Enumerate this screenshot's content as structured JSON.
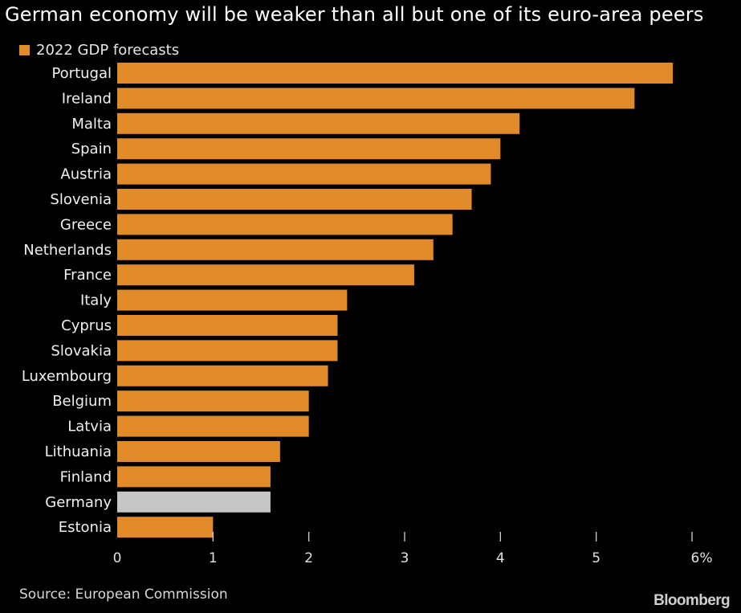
{
  "chart_data": {
    "type": "bar",
    "orientation": "horizontal",
    "title": "German economy will be weaker than all but one of its euro-area peers",
    "legend": "2022 GDP forecasts",
    "categories": [
      "Portugal",
      "Ireland",
      "Malta",
      "Spain",
      "Austria",
      "Slovenia",
      "Greece",
      "Netherlands",
      "France",
      "Italy",
      "Cyprus",
      "Slovakia",
      "Luxembourg",
      "Belgium",
      "Latvia",
      "Lithuania",
      "Finland",
      "Germany",
      "Estonia"
    ],
    "values": [
      5.8,
      5.4,
      4.2,
      4.0,
      3.9,
      3.7,
      3.5,
      3.3,
      3.1,
      2.4,
      2.3,
      2.3,
      2.2,
      2.0,
      2.0,
      1.7,
      1.6,
      1.6,
      1.0
    ],
    "highlight": "Germany",
    "xlim": [
      0,
      6
    ],
    "xticks": [
      "0",
      "1",
      "2",
      "3",
      "4",
      "5",
      "6%"
    ],
    "source": "Source: European Commission",
    "brand": "Bloomberg",
    "colors": {
      "bar": "#E08A2A",
      "highlight": "#C6C6C6",
      "background": "#000000",
      "text": "#FFFFFF"
    }
  }
}
